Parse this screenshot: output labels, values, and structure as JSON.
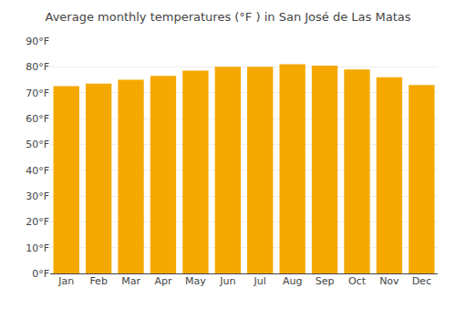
{
  "chart_data": {
    "type": "bar",
    "title": "Average monthly temperatures (°F ) in San José de Las Matas",
    "categories": [
      "Jan",
      "Feb",
      "Mar",
      "Apr",
      "May",
      "Jun",
      "Jul",
      "Aug",
      "Sep",
      "Oct",
      "Nov",
      "Dec"
    ],
    "values": [
      72.5,
      73.5,
      75.0,
      76.5,
      78.5,
      80.0,
      80.0,
      81.0,
      80.5,
      79.0,
      76.0,
      73.0
    ],
    "color": "#F5A800",
    "ylim": [
      0,
      90
    ],
    "yticks": [
      {
        "value": 0,
        "label": "0°F"
      },
      {
        "value": 10,
        "label": "10°F"
      },
      {
        "value": 20,
        "label": "20°F"
      },
      {
        "value": 30,
        "label": "30°F"
      },
      {
        "value": 40,
        "label": "40°F"
      },
      {
        "value": 50,
        "label": "50°F"
      },
      {
        "value": 60,
        "label": "60°F"
      },
      {
        "value": 70,
        "label": "70°F"
      },
      {
        "value": 80,
        "label": "80°F"
      },
      {
        "value": 90,
        "label": "90°F"
      }
    ],
    "grid": true
  }
}
